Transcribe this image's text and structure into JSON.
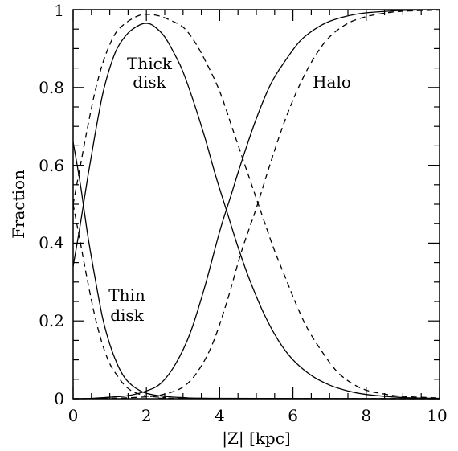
{
  "chart_data": {
    "type": "line",
    "xlabel": "|Z| [kpc]",
    "ylabel": "Fraction",
    "xlim": [
      0,
      10
    ],
    "ylim": [
      0,
      1
    ],
    "xticks": [
      0,
      2,
      4,
      6,
      8,
      10
    ],
    "yticks": [
      0,
      0.2,
      0.4,
      0.6,
      0.8,
      1
    ],
    "xtick_labels": [
      "0",
      "2",
      "4",
      "6",
      "8",
      "10"
    ],
    "ytick_labels": [
      "0",
      "0.2",
      "0.4",
      "0.6",
      "0.8",
      "1"
    ],
    "grid": false,
    "annotations": {
      "thick_disk": [
        "Thick",
        "disk"
      ],
      "halo": "Halo",
      "thin_disk": [
        "Thin",
        "disk"
      ]
    },
    "series": [
      {
        "style": "solid",
        "points": [
          [
            0,
            0.66
          ],
          [
            0.2,
            0.55
          ],
          [
            0.4,
            0.42
          ],
          [
            0.6,
            0.31
          ],
          [
            0.8,
            0.21
          ],
          [
            1.0,
            0.14
          ],
          [
            1.2,
            0.09
          ],
          [
            1.4,
            0.055
          ],
          [
            1.6,
            0.035
          ],
          [
            1.8,
            0.022
          ],
          [
            2.0,
            0.014
          ],
          [
            2.4,
            0.007
          ],
          [
            3.0,
            0.003
          ],
          [
            4.0,
            0.001
          ],
          [
            10,
            0
          ]
        ]
      },
      {
        "style": "solid",
        "points": [
          [
            0,
            0.34
          ],
          [
            0.2,
            0.45
          ],
          [
            0.4,
            0.57
          ],
          [
            0.6,
            0.68
          ],
          [
            0.8,
            0.78
          ],
          [
            1.0,
            0.85
          ],
          [
            1.2,
            0.9
          ],
          [
            1.5,
            0.94
          ],
          [
            1.8,
            0.96
          ],
          [
            2.0,
            0.965
          ],
          [
            2.2,
            0.958
          ],
          [
            2.5,
            0.93
          ],
          [
            2.8,
            0.88
          ],
          [
            3.0,
            0.84
          ],
          [
            3.3,
            0.76
          ],
          [
            3.6,
            0.67
          ],
          [
            3.9,
            0.57
          ],
          [
            4.2,
            0.48
          ],
          [
            4.5,
            0.39
          ],
          [
            4.8,
            0.31
          ],
          [
            5.2,
            0.22
          ],
          [
            5.6,
            0.15
          ],
          [
            6.0,
            0.1
          ],
          [
            6.5,
            0.06
          ],
          [
            7.0,
            0.035
          ],
          [
            7.5,
            0.02
          ],
          [
            8.0,
            0.011
          ],
          [
            9.0,
            0.003
          ],
          [
            10,
            0.001
          ]
        ]
      },
      {
        "style": "solid",
        "points": [
          [
            0,
            0
          ],
          [
            0.5,
            0.001
          ],
          [
            1.0,
            0.004
          ],
          [
            1.5,
            0.008
          ],
          [
            2.0,
            0.02
          ],
          [
            2.4,
            0.04
          ],
          [
            2.8,
            0.09
          ],
          [
            3.2,
            0.17
          ],
          [
            3.6,
            0.29
          ],
          [
            4.0,
            0.43
          ],
          [
            4.3,
            0.52
          ],
          [
            4.6,
            0.61
          ],
          [
            5.0,
            0.72
          ],
          [
            5.4,
            0.81
          ],
          [
            5.8,
            0.87
          ],
          [
            6.2,
            0.92
          ],
          [
            6.6,
            0.95
          ],
          [
            7.0,
            0.97
          ],
          [
            7.5,
            0.984
          ],
          [
            8.0,
            0.992
          ],
          [
            9.0,
            0.998
          ],
          [
            10,
            1.0
          ]
        ]
      },
      {
        "style": "dashed",
        "points": [
          [
            0,
            0.5
          ],
          [
            0.2,
            0.4
          ],
          [
            0.4,
            0.3
          ],
          [
            0.6,
            0.21
          ],
          [
            0.8,
            0.14
          ],
          [
            1.0,
            0.09
          ],
          [
            1.2,
            0.06
          ],
          [
            1.4,
            0.035
          ],
          [
            1.6,
            0.02
          ],
          [
            1.8,
            0.012
          ],
          [
            2.0,
            0.007
          ],
          [
            2.5,
            0.003
          ],
          [
            3.0,
            0.001
          ],
          [
            10,
            0
          ]
        ]
      },
      {
        "style": "dashed",
        "points": [
          [
            0,
            0.5
          ],
          [
            0.2,
            0.6
          ],
          [
            0.4,
            0.7
          ],
          [
            0.6,
            0.79
          ],
          [
            0.8,
            0.86
          ],
          [
            1.0,
            0.91
          ],
          [
            1.2,
            0.945
          ],
          [
            1.5,
            0.97
          ],
          [
            1.8,
            0.985
          ],
          [
            2.0,
            0.988
          ],
          [
            2.3,
            0.985
          ],
          [
            2.6,
            0.975
          ],
          [
            3.0,
            0.955
          ],
          [
            3.3,
            0.92
          ],
          [
            3.6,
            0.87
          ],
          [
            4.0,
            0.79
          ],
          [
            4.4,
            0.68
          ],
          [
            4.8,
            0.57
          ],
          [
            5.2,
            0.46
          ],
          [
            5.5,
            0.38
          ],
          [
            5.8,
            0.31
          ],
          [
            6.1,
            0.24
          ],
          [
            6.4,
            0.18
          ],
          [
            6.8,
            0.12
          ],
          [
            7.2,
            0.07
          ],
          [
            7.6,
            0.04
          ],
          [
            8.0,
            0.022
          ],
          [
            8.5,
            0.012
          ],
          [
            9.0,
            0.006
          ],
          [
            10,
            0.002
          ]
        ]
      },
      {
        "style": "dashed",
        "points": [
          [
            0,
            0
          ],
          [
            1.0,
            0.001
          ],
          [
            2.0,
            0.005
          ],
          [
            2.5,
            0.012
          ],
          [
            3.0,
            0.03
          ],
          [
            3.4,
            0.07
          ],
          [
            3.8,
            0.14
          ],
          [
            4.2,
            0.25
          ],
          [
            4.6,
            0.38
          ],
          [
            5.0,
            0.49
          ],
          [
            5.4,
            0.61
          ],
          [
            5.8,
            0.72
          ],
          [
            6.2,
            0.81
          ],
          [
            6.6,
            0.88
          ],
          [
            7.0,
            0.93
          ],
          [
            7.5,
            0.965
          ],
          [
            8.0,
            0.982
          ],
          [
            8.5,
            0.991
          ],
          [
            9.0,
            0.996
          ],
          [
            10,
            0.999
          ]
        ]
      }
    ]
  }
}
